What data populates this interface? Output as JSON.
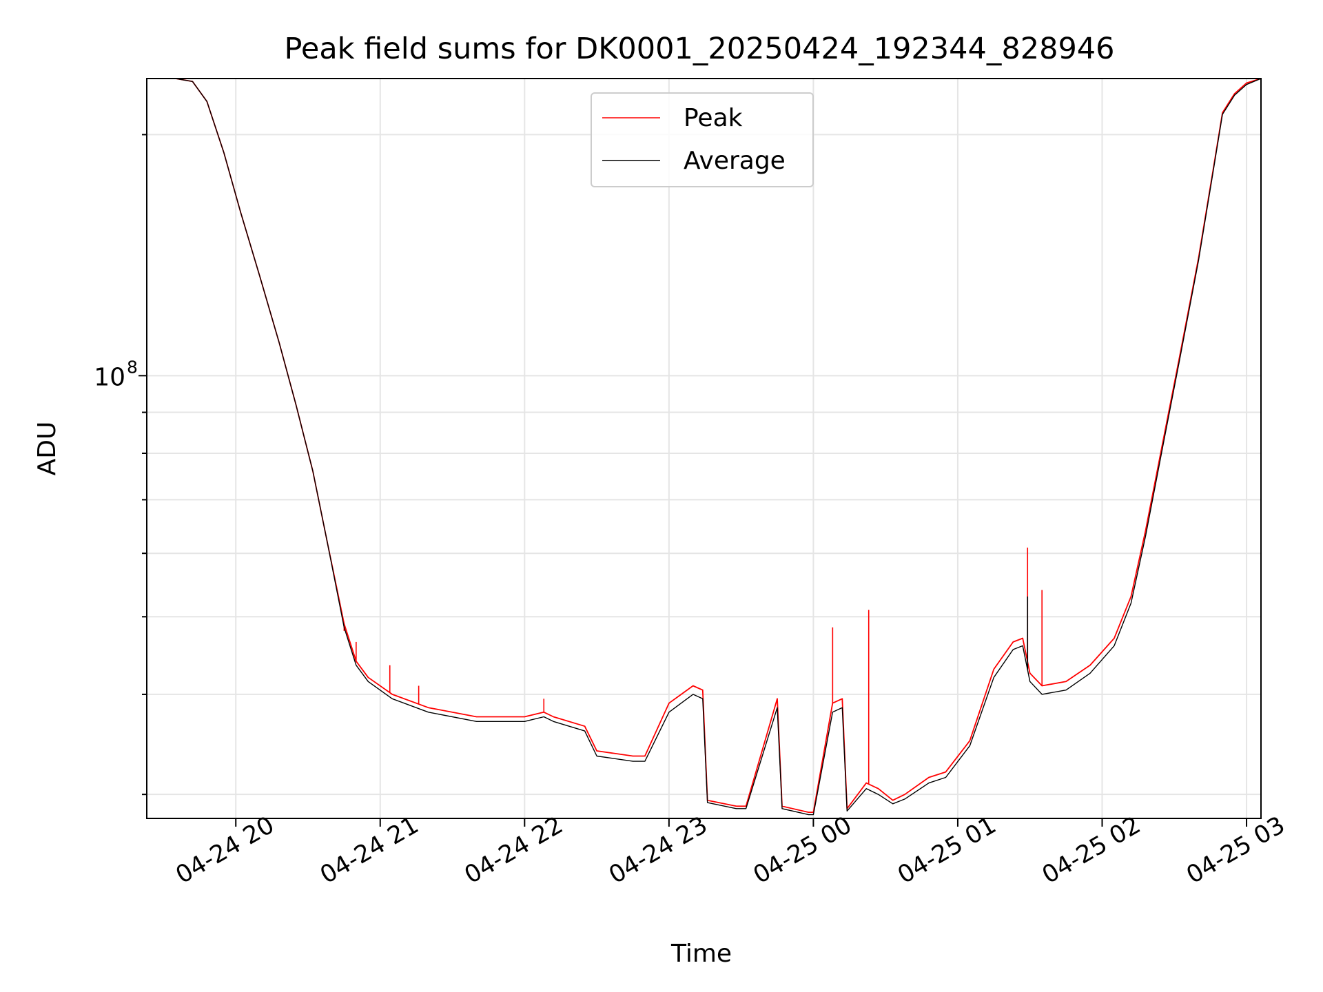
{
  "chart_data": {
    "type": "line",
    "title": "Peak field sums for DK0001_20250424_192344_828946",
    "xlabel": "Time",
    "ylabel": "ADU",
    "yscale": "log",
    "ylim": [
      28000000,
      235000000
    ],
    "xlim": [
      "2025-04-24 19:23",
      "2025-04-25 03:06"
    ],
    "x_ticks": [
      "2025-04-24 20:00",
      "2025-04-24 21:00",
      "2025-04-24 22:00",
      "2025-04-24 23:00",
      "2025-04-25 00:00",
      "2025-04-25 01:00",
      "2025-04-25 02:00",
      "2025-04-25 03:00"
    ],
    "x_tick_labels": [
      "04-24 20",
      "04-24 21",
      "04-24 22",
      "04-24 23",
      "04-25 00",
      "04-25 01",
      "04-25 02",
      "04-25 03"
    ],
    "y_tick_labels": [
      {
        "base": "10",
        "exp": "8"
      }
    ],
    "y_tick_value": 100000000,
    "y_grid_values": [
      30000000,
      40000000,
      50000000,
      60000000,
      70000000,
      80000000,
      90000000,
      100000000,
      200000000
    ],
    "grid": true,
    "legend": {
      "position": "upper center",
      "entries": [
        "Peak",
        "Average"
      ]
    },
    "series": [
      {
        "name": "Peak",
        "color": "#ff0000",
        "x": [
          "2025-04-24 19:23",
          "2025-04-24 19:35",
          "2025-04-24 19:42",
          "2025-04-24 19:48",
          "2025-04-24 19:55",
          "2025-04-24 20:02",
          "2025-04-24 20:10",
          "2025-04-24 20:18",
          "2025-04-24 20:25",
          "2025-04-24 20:32",
          "2025-04-24 20:38",
          "2025-04-24 20:45",
          "2025-04-24 20:50",
          "2025-04-24 20:55",
          "2025-04-24 21:05",
          "2025-04-24 21:20",
          "2025-04-24 21:40",
          "2025-04-24 22:00",
          "2025-04-24 22:08",
          "2025-04-24 22:12",
          "2025-04-24 22:25",
          "2025-04-24 22:30",
          "2025-04-24 22:45",
          "2025-04-24 22:50",
          "2025-04-24 23:00",
          "2025-04-24 23:10",
          "2025-04-24 23:14",
          "2025-04-24 23:16",
          "2025-04-24 23:28",
          "2025-04-24 23:32",
          "2025-04-24 23:45",
          "2025-04-24 23:47",
          "2025-04-24 23:58",
          "2025-04-25 00:00",
          "2025-04-25 00:08",
          "2025-04-25 00:12",
          "2025-04-25 00:14",
          "2025-04-25 00:22",
          "2025-04-25 00:27",
          "2025-04-25 00:33",
          "2025-04-25 00:38",
          "2025-04-25 00:48",
          "2025-04-25 00:55",
          "2025-04-25 01:05",
          "2025-04-25 01:15",
          "2025-04-25 01:23",
          "2025-04-25 01:27",
          "2025-04-25 01:30",
          "2025-04-25 01:35",
          "2025-04-25 01:45",
          "2025-04-25 01:55",
          "2025-04-25 02:05",
          "2025-04-25 02:12",
          "2025-04-25 02:18",
          "2025-04-25 02:25",
          "2025-04-25 02:32",
          "2025-04-25 02:40",
          "2025-04-25 02:46",
          "2025-04-25 02:50",
          "2025-04-25 02:55",
          "2025-04-25 03:00",
          "2025-04-25 03:06"
        ],
        "values": [
          235000000,
          235000000,
          233000000,
          220000000,
          190000000,
          160000000,
          133000000,
          110000000,
          92000000,
          76000000,
          62000000,
          49000000,
          44000000,
          42000000,
          40000000,
          38500000,
          37500000,
          37500000,
          38000000,
          37500000,
          36500000,
          34000000,
          33500000,
          33500000,
          39000000,
          41000000,
          40500000,
          29500000,
          29000000,
          29000000,
          39500000,
          29000000,
          28500000,
          28500000,
          39000000,
          39500000,
          28800000,
          31000000,
          30500000,
          29500000,
          30000000,
          31500000,
          32000000,
          35000000,
          43000000,
          46500000,
          47000000,
          42500000,
          41000000,
          41500000,
          43500000,
          47000000,
          53000000,
          64000000,
          82000000,
          105000000,
          140000000,
          180000000,
          213000000,
          225000000,
          232000000,
          235000000
        ],
        "spikes": [
          {
            "x": "2025-04-24 20:45",
            "y": 48000000
          },
          {
            "x": "2025-04-24 20:50",
            "y": 46500000
          },
          {
            "x": "2025-04-24 21:04",
            "y": 43500000
          },
          {
            "x": "2025-04-24 21:16",
            "y": 41000000
          },
          {
            "x": "2025-04-24 22:08",
            "y": 39500000
          },
          {
            "x": "2025-04-25 00:08",
            "y": 48500000
          },
          {
            "x": "2025-04-25 00:23",
            "y": 51000000
          },
          {
            "x": "2025-04-25 01:29",
            "y": 61000000
          },
          {
            "x": "2025-04-25 01:35",
            "y": 54000000
          }
        ]
      },
      {
        "name": "Average",
        "color": "#000000",
        "x": [
          "2025-04-24 19:23",
          "2025-04-24 19:35",
          "2025-04-24 19:42",
          "2025-04-24 19:48",
          "2025-04-24 19:55",
          "2025-04-24 20:02",
          "2025-04-24 20:10",
          "2025-04-24 20:18",
          "2025-04-24 20:25",
          "2025-04-24 20:32",
          "2025-04-24 20:38",
          "2025-04-24 20:45",
          "2025-04-24 20:50",
          "2025-04-24 20:55",
          "2025-04-24 21:05",
          "2025-04-24 21:20",
          "2025-04-24 21:40",
          "2025-04-24 22:00",
          "2025-04-24 22:08",
          "2025-04-24 22:12",
          "2025-04-24 22:25",
          "2025-04-24 22:30",
          "2025-04-24 22:45",
          "2025-04-24 22:50",
          "2025-04-24 23:00",
          "2025-04-24 23:10",
          "2025-04-24 23:14",
          "2025-04-24 23:16",
          "2025-04-24 23:28",
          "2025-04-24 23:32",
          "2025-04-24 23:45",
          "2025-04-24 23:47",
          "2025-04-24 23:58",
          "2025-04-25 00:00",
          "2025-04-25 00:08",
          "2025-04-25 00:12",
          "2025-04-25 00:14",
          "2025-04-25 00:22",
          "2025-04-25 00:27",
          "2025-04-25 00:33",
          "2025-04-25 00:38",
          "2025-04-25 00:48",
          "2025-04-25 00:55",
          "2025-04-25 01:05",
          "2025-04-25 01:15",
          "2025-04-25 01:23",
          "2025-04-25 01:27",
          "2025-04-25 01:30",
          "2025-04-25 01:35",
          "2025-04-25 01:45",
          "2025-04-25 01:55",
          "2025-04-25 02:05",
          "2025-04-25 02:12",
          "2025-04-25 02:18",
          "2025-04-25 02:25",
          "2025-04-25 02:32",
          "2025-04-25 02:40",
          "2025-04-25 02:46",
          "2025-04-25 02:50",
          "2025-04-25 02:55",
          "2025-04-25 03:00",
          "2025-04-25 03:06"
        ],
        "values": [
          235000000,
          235000000,
          233000000,
          220000000,
          190000000,
          160000000,
          133000000,
          110000000,
          92000000,
          76000000,
          62000000,
          48500000,
          43500000,
          41500000,
          39500000,
          38000000,
          37000000,
          37000000,
          37500000,
          37000000,
          36000000,
          33500000,
          33000000,
          33000000,
          38000000,
          40000000,
          39500000,
          29300000,
          28800000,
          28800000,
          38500000,
          28800000,
          28300000,
          28300000,
          38000000,
          38500000,
          28600000,
          30500000,
          30000000,
          29200000,
          29600000,
          31000000,
          31500000,
          34500000,
          42000000,
          45500000,
          46000000,
          41500000,
          40000000,
          40500000,
          42500000,
          46000000,
          52000000,
          63000000,
          81000000,
          104000000,
          139000000,
          179000000,
          212000000,
          224000000,
          231000000,
          235000000
        ],
        "spikes": [
          {
            "x": "2025-04-25 01:29",
            "y": 53000000
          }
        ]
      }
    ]
  }
}
